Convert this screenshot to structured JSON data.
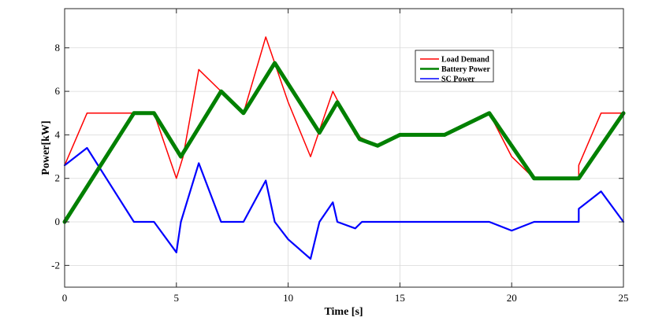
{
  "chart_data": {
    "type": "line",
    "xlabel": "Time [s]",
    "ylabel": "Power[kW]",
    "xlim": [
      0,
      25
    ],
    "ylim": [
      -3,
      9.8
    ],
    "xticks": [
      0,
      5,
      10,
      15,
      20,
      25
    ],
    "yticks": [
      -2,
      0,
      2,
      4,
      6,
      8
    ],
    "grid": true,
    "legend_position": "top-right",
    "series": [
      {
        "name": "Load Demand",
        "color": "#ff0000",
        "x": [
          0,
          1,
          3.1,
          4,
          5,
          5.3,
          6,
          7,
          8,
          9,
          10,
          11,
          11.5,
          12,
          13,
          14,
          15,
          17,
          19,
          20,
          21,
          23,
          23,
          24,
          25
        ],
        "y": [
          2.6,
          5,
          5,
          5,
          2,
          3,
          7,
          6,
          5,
          8.5,
          5.5,
          3,
          4.5,
          6,
          4,
          3.5,
          4,
          4,
          5,
          3,
          2,
          2,
          2.6,
          5,
          5
        ]
      },
      {
        "name": "Battery Power",
        "color": "#008000",
        "x": [
          0,
          3.1,
          4,
          5.2,
          7,
          8,
          9.4,
          11.4,
          12.2,
          13.2,
          14,
          15,
          17,
          19,
          21,
          23,
          25
        ],
        "y": [
          0,
          5,
          5,
          3,
          6,
          5,
          7.3,
          4.1,
          5.5,
          3.8,
          3.5,
          4,
          4,
          5,
          2,
          2,
          5
        ]
      },
      {
        "name": "SC Power",
        "color": "#0000ff",
        "x": [
          0,
          1,
          3.1,
          4,
          5,
          5.2,
          6,
          7,
          8,
          9,
          9.4,
          10,
          11,
          11.4,
          12,
          12.2,
          13,
          13.3,
          19,
          20,
          21,
          23,
          23,
          24,
          25
        ],
        "y": [
          2.6,
          3.4,
          0,
          0,
          -1.4,
          0,
          2.7,
          0,
          0,
          1.9,
          0,
          -0.8,
          -1.7,
          0,
          0.9,
          0,
          -0.3,
          0,
          0,
          -0.4,
          0,
          0,
          0.6,
          1.4,
          0
        ]
      }
    ]
  }
}
